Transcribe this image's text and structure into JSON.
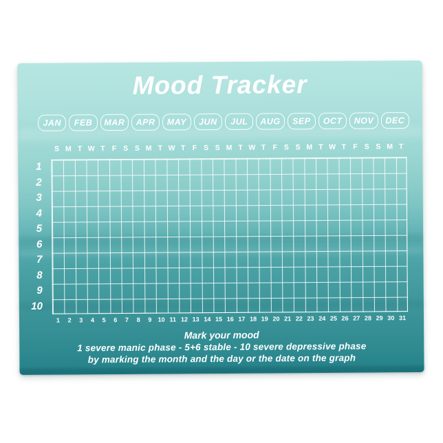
{
  "product": {
    "title": "Mood Tracker"
  },
  "months": [
    "JAN",
    "FEB",
    "MAR",
    "APR",
    "MAY",
    "JUN",
    "JUL",
    "AUG",
    "SEP",
    "OCT",
    "NOV",
    "DEC"
  ],
  "week_header": [
    "S",
    "M",
    "T",
    "W",
    "T",
    "F",
    "S",
    "S",
    "M",
    "T",
    "W",
    "T",
    "F",
    "S",
    "S",
    "M",
    "T",
    "W",
    "T",
    "F",
    "S",
    "S",
    "M",
    "T",
    "W",
    "T",
    "F",
    "S",
    "S",
    "M",
    "T"
  ],
  "mood_levels": [
    "1",
    "2",
    "3",
    "4",
    "5",
    "6",
    "7",
    "8",
    "9",
    "10"
  ],
  "day_numbers": [
    "1",
    "2",
    "3",
    "4",
    "5",
    "6",
    "7",
    "8",
    "9",
    "10",
    "11",
    "12",
    "13",
    "14",
    "15",
    "16",
    "17",
    "18",
    "19",
    "20",
    "21",
    "22",
    "23",
    "24",
    "25",
    "26",
    "27",
    "28",
    "29",
    "30",
    "31"
  ],
  "footer": {
    "heading": "Mark your mood",
    "scale_line": "1 severe manic phase - 5+6 stable - 10 severe depressive phase",
    "instruction_line": "by marking the month and the day or the date on the graph"
  },
  "grid": {
    "rows": 10,
    "cols": 31
  },
  "colors": {
    "paper_top": "#b7e6e2",
    "paper_bottom": "#1e7a82",
    "ink": "#ffffff"
  }
}
